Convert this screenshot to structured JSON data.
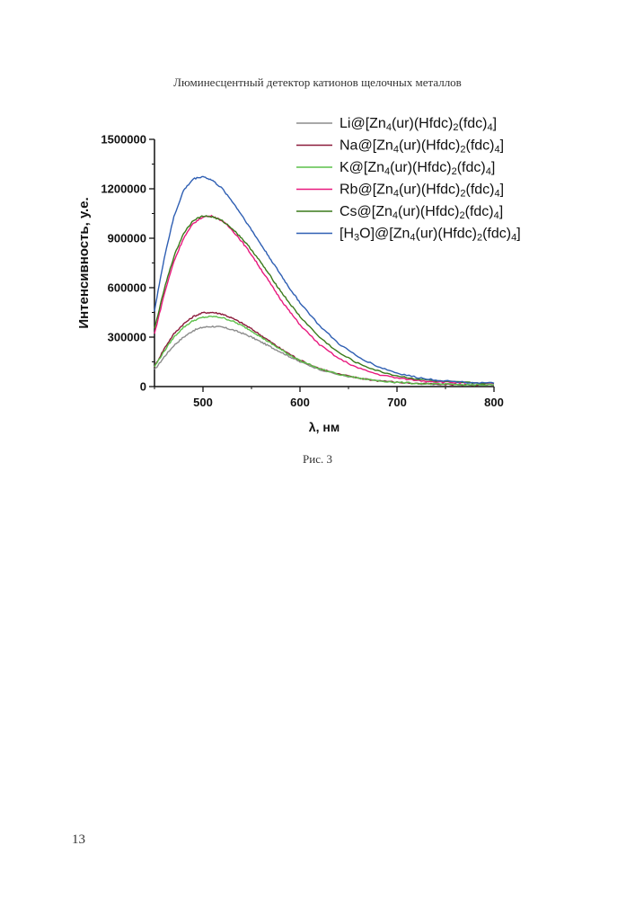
{
  "header": {
    "running_title": "Люминесцентный детектор катионов щелочных металлов"
  },
  "figure": {
    "caption": "Рис. 3"
  },
  "page": {
    "number": "13"
  },
  "chart_data": {
    "type": "line",
    "xlabel": "λ, нм",
    "ylabel": "Интенсивность, у.е.",
    "xlim": [
      450,
      800
    ],
    "ylim": [
      0,
      1500000
    ],
    "x_ticks": [
      500,
      600,
      700,
      800
    ],
    "y_ticks": [
      0,
      300000,
      600000,
      900000,
      1200000,
      1500000
    ],
    "x_tick_labels": [
      "500",
      "600",
      "700",
      "800"
    ],
    "y_tick_labels": [
      "0",
      "300000",
      "600000",
      "900000",
      "1200000",
      "1500000"
    ],
    "grid": false,
    "legend_position": "top-right",
    "x": [
      450,
      460,
      470,
      480,
      490,
      500,
      510,
      520,
      530,
      540,
      550,
      560,
      570,
      580,
      590,
      600,
      620,
      640,
      660,
      680,
      700,
      720,
      740,
      760,
      780,
      800
    ],
    "series": [
      {
        "prefix": "Li@[Zn",
        "s1": "4",
        "mid1": "(ur)(Hfdc)",
        "s2": "2",
        "mid2": "(fdc)",
        "s3": "4",
        "suffix": "]",
        "color": "#8c8c8c",
        "values": [
          100000,
          180000,
          250000,
          300000,
          340000,
          360000,
          365000,
          360000,
          345000,
          325000,
          300000,
          270000,
          240000,
          210000,
          180000,
          150000,
          105000,
          72000,
          50000,
          35000,
          25000,
          18000,
          14000,
          12000,
          10000,
          10000
        ]
      },
      {
        "prefix": "Na@[Zn",
        "s1": "4",
        "mid1": "(ur)(Hfdc)",
        "s2": "2",
        "mid2": "(fdc)",
        "s3": "4",
        "suffix": "]",
        "color": "#8b1a3a",
        "values": [
          120000,
          230000,
          320000,
          380000,
          425000,
          448000,
          450000,
          440000,
          415000,
          385000,
          350000,
          310000,
          270000,
          230000,
          195000,
          160000,
          110000,
          75000,
          52000,
          36000,
          26000,
          19000,
          15000,
          12000,
          10000,
          10000
        ]
      },
      {
        "prefix": "K@[Zn",
        "s1": "4",
        "mid1": "(ur)(Hfdc)",
        "s2": "2",
        "mid2": "(fdc)",
        "s3": "4",
        "suffix": "]",
        "color": "#5cc04a",
        "values": [
          120000,
          215000,
          300000,
          360000,
          400000,
          420000,
          425000,
          418000,
          398000,
          370000,
          338000,
          300000,
          262000,
          225000,
          190000,
          158000,
          108000,
          74000,
          51000,
          36000,
          26000,
          19000,
          15000,
          12000,
          10000,
          10000
        ]
      },
      {
        "prefix": "Rb@[Zn",
        "s1": "4",
        "mid1": "(ur)(Hfdc)",
        "s2": "2",
        "mid2": "(fdc)",
        "s3": "4",
        "suffix": "]",
        "color": "#e8197e",
        "values": [
          320000,
          560000,
          760000,
          900000,
          990000,
          1030000,
          1035000,
          1005000,
          950000,
          880000,
          800000,
          710000,
          620000,
          530000,
          450000,
          375000,
          255000,
          170000,
          112000,
          75000,
          52000,
          38000,
          30000,
          24000,
          20000,
          18000
        ]
      },
      {
        "prefix": "Cs@[Zn",
        "s1": "4",
        "mid1": "(ur)(Hfdc)",
        "s2": "2",
        "mid2": "(fdc)",
        "s3": "4",
        "suffix": "]",
        "color": "#3a7a1a",
        "values": [
          350000,
          590000,
          790000,
          930000,
          1010000,
          1035000,
          1030000,
          1005000,
          960000,
          900000,
          830000,
          750000,
          665000,
          580000,
          500000,
          425000,
          300000,
          205000,
          140000,
          95000,
          65000,
          46000,
          34000,
          27000,
          22000,
          20000
        ]
      },
      {
        "prefix": "[H",
        "s1": "3",
        "mid1": "O]@[Zn",
        "s2": "4",
        "mid2": "(ur)(Hfdc)",
        "s3": "2",
        "suffix": "(fdc)",
        "s4": "4",
        "tail": "]",
        "color": "#2f5fb3",
        "values": [
          460000,
          780000,
          1030000,
          1190000,
          1260000,
          1275000,
          1250000,
          1200000,
          1125000,
          1040000,
          950000,
          860000,
          770000,
          680000,
          590000,
          510000,
          370000,
          260000,
          180000,
          122000,
          82000,
          56000,
          40000,
          30000,
          24000,
          20000
        ]
      }
    ]
  }
}
